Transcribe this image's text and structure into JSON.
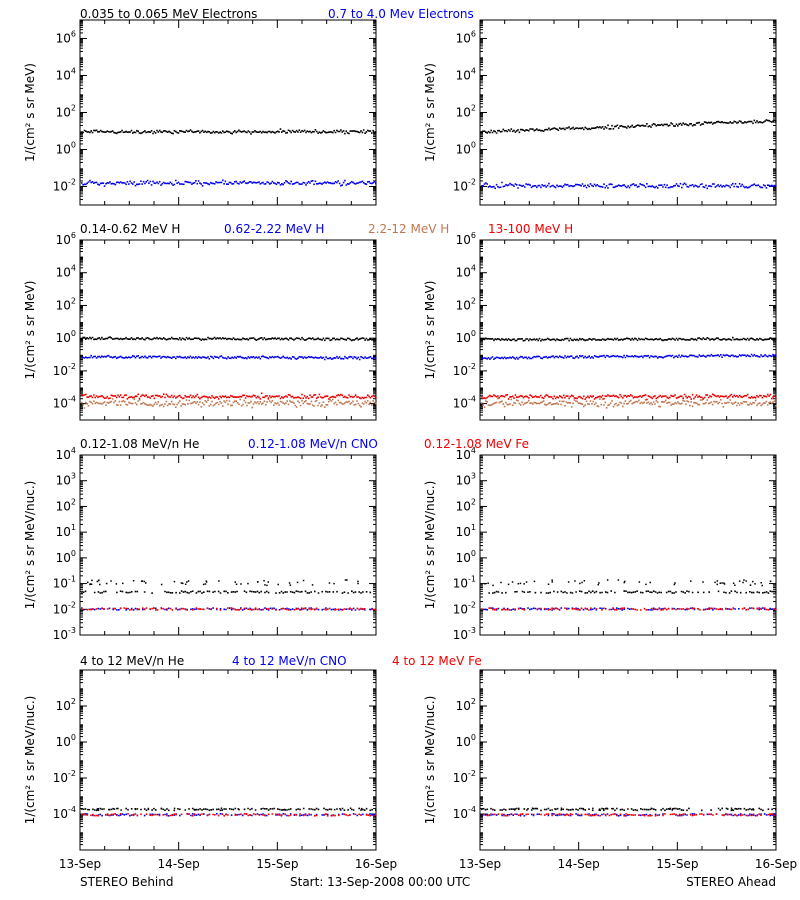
{
  "colors": {
    "black": "#000000",
    "blue": "#0000ee",
    "tan": "#c07850",
    "red": "#ee0000"
  },
  "rows": [
    {
      "legend": [
        {
          "text": "0.035 to 0.065 MeV Electrons",
          "color": "#000000"
        },
        {
          "text": "0.7 to 4.0 Mev Electrons",
          "color": "#0000ee"
        }
      ],
      "ylabel": "1/(cm² s sr MeV)"
    },
    {
      "legend": [
        {
          "text": "0.14-0.62 MeV H",
          "color": "#000000"
        },
        {
          "text": "0.62-2.22 MeV H",
          "color": "#0000ee"
        },
        {
          "text": "2.2-12 MeV H",
          "color": "#c07850"
        },
        {
          "text": "13-100 MeV H",
          "color": "#ee0000"
        }
      ],
      "ylabel": "1/(cm² s sr MeV)"
    },
    {
      "legend": [
        {
          "text": "0.12-1.08 MeV/n He",
          "color": "#000000"
        },
        {
          "text": "0.12-1.08 MeV/n CNO",
          "color": "#0000ee"
        },
        {
          "text": "0.12-1.08 MeV Fe",
          "color": "#ee0000"
        }
      ],
      "ylabel": "1/(cm² s sr MeV/nuc.)"
    },
    {
      "legend": [
        {
          "text": "4 to 12 MeV/n He",
          "color": "#000000"
        },
        {
          "text": "4 to 12 MeV/n CNO",
          "color": "#0000ee"
        },
        {
          "text": "4 to 12 MeV Fe",
          "color": "#ee0000"
        }
      ],
      "ylabel": "1/(cm² s sr MeV/nuc.)"
    }
  ],
  "footer": {
    "left": "STEREO Behind",
    "center": "Start: 13-Sep-2008 00:00 UTC",
    "right": "STEREO Ahead"
  },
  "chart_data": [
    {
      "type": "scatter",
      "row": 0,
      "spacecraft": "STEREO Behind",
      "x_ticks": [
        "13-Sep",
        "14-Sep",
        "15-Sep",
        "16-Sep"
      ],
      "xlim": [
        "2008-09-13T00:00",
        "2008-09-16T00:00"
      ],
      "yscale": "log",
      "ylim": [
        0.001,
        10000000
      ],
      "y_ticks": [
        {
          "exp": -2,
          "v": 0.01
        },
        {
          "exp": 0,
          "v": 1
        },
        {
          "exp": 2,
          "v": 100
        },
        {
          "exp": 4,
          "v": 10000
        },
        {
          "exp": 6,
          "v": 1000000
        }
      ],
      "series": [
        {
          "name": "0.035 to 0.065 MeV Electrons",
          "color": "#000000",
          "start": 10,
          "end": 10,
          "scatter": 0.1
        },
        {
          "name": "0.7 to 4.0 Mev Electrons",
          "color": "#0000ee",
          "start": 0.017,
          "end": 0.017,
          "scatter": 0.15
        }
      ]
    },
    {
      "type": "scatter",
      "row": 0,
      "spacecraft": "STEREO Ahead",
      "x_ticks": [
        "13-Sep",
        "14-Sep",
        "15-Sep",
        "16-Sep"
      ],
      "xlim": [
        "2008-09-13T00:00",
        "2008-09-16T00:00"
      ],
      "yscale": "log",
      "ylim": [
        0.001,
        10000000
      ],
      "y_ticks": [
        {
          "exp": -2,
          "v": 0.01
        },
        {
          "exp": 0,
          "v": 1
        },
        {
          "exp": 2,
          "v": 100
        },
        {
          "exp": 4,
          "v": 10000
        },
        {
          "exp": 6,
          "v": 1000000
        }
      ],
      "series": [
        {
          "name": "0.035 to 0.065 MeV Electrons",
          "color": "#000000",
          "start": 10,
          "end": 38,
          "scatter": 0.1
        },
        {
          "name": "0.7 to 4.0 Mev Electrons",
          "color": "#0000ee",
          "start": 0.012,
          "end": 0.012,
          "scatter": 0.15
        }
      ]
    },
    {
      "type": "scatter",
      "row": 1,
      "spacecraft": "STEREO Behind",
      "x_ticks": [
        "13-Sep",
        "14-Sep",
        "15-Sep",
        "16-Sep"
      ],
      "xlim": [
        "2008-09-13T00:00",
        "2008-09-16T00:00"
      ],
      "yscale": "log",
      "ylim": [
        1e-05,
        1000000
      ],
      "y_ticks": [
        {
          "exp": -4,
          "v": 0.0001
        },
        {
          "exp": -2,
          "v": 0.01
        },
        {
          "exp": 0,
          "v": 1
        },
        {
          "exp": 2,
          "v": 100
        },
        {
          "exp": 4,
          "v": 10000
        },
        {
          "exp": 6,
          "v": 1000000
        }
      ],
      "series": [
        {
          "name": "0.14-0.62 MeV H",
          "color": "#000000",
          "start": 1.1,
          "end": 0.95,
          "scatter": 0.05
        },
        {
          "name": "0.62-2.22 MeV H",
          "color": "#0000ee",
          "start": 0.08,
          "end": 0.07,
          "scatter": 0.06
        },
        {
          "name": "2.2-12 MeV H",
          "color": "#c07850",
          "start": 0.00012,
          "end": 0.00012,
          "scatter": 0.3
        },
        {
          "name": "13-100 MeV H",
          "color": "#ee0000",
          "start": 0.0003,
          "end": 0.0003,
          "scatter": 0.18
        }
      ]
    },
    {
      "type": "scatter",
      "row": 1,
      "spacecraft": "STEREO Ahead",
      "x_ticks": [
        "13-Sep",
        "14-Sep",
        "15-Sep",
        "16-Sep"
      ],
      "xlim": [
        "2008-09-13T00:00",
        "2008-09-16T00:00"
      ],
      "yscale": "log",
      "ylim": [
        1e-05,
        1000000
      ],
      "y_ticks": [
        {
          "exp": -4,
          "v": 0.0001
        },
        {
          "exp": -2,
          "v": 0.01
        },
        {
          "exp": 0,
          "v": 1
        },
        {
          "exp": 2,
          "v": 100
        },
        {
          "exp": 4,
          "v": 10000
        },
        {
          "exp": 6,
          "v": 1000000
        }
      ],
      "series": [
        {
          "name": "0.14-0.62 MeV H",
          "color": "#000000",
          "start": 0.9,
          "end": 1.0,
          "scatter": 0.05
        },
        {
          "name": "0.62-2.22 MeV H",
          "color": "#0000ee",
          "start": 0.07,
          "end": 0.1,
          "scatter": 0.06
        },
        {
          "name": "2.2-12 MeV H",
          "color": "#c07850",
          "start": 0.00012,
          "end": 0.00012,
          "scatter": 0.3
        },
        {
          "name": "13-100 MeV H",
          "color": "#ee0000",
          "start": 0.0003,
          "end": 0.0003,
          "scatter": 0.18
        }
      ]
    },
    {
      "type": "scatter",
      "row": 2,
      "spacecraft": "STEREO Behind",
      "x_ticks": [
        "13-Sep",
        "14-Sep",
        "15-Sep",
        "16-Sep"
      ],
      "xlim": [
        "2008-09-13T00:00",
        "2008-09-16T00:00"
      ],
      "yscale": "log",
      "ylim": [
        0.001,
        10000
      ],
      "y_ticks": [
        {
          "exp": -3,
          "v": 0.001
        },
        {
          "exp": -2,
          "v": 0.01
        },
        {
          "exp": -1,
          "v": 0.1
        },
        {
          "exp": 0,
          "v": 1
        },
        {
          "exp": 1,
          "v": 10
        },
        {
          "exp": 2,
          "v": 100
        },
        {
          "exp": 3,
          "v": 1000
        },
        {
          "exp": 4,
          "v": 10000
        }
      ],
      "series": [
        {
          "name": "0.12-1.08 MeV/n He",
          "color": "#000000",
          "start": 0.05,
          "end": 0.05,
          "scatter": 0.0,
          "sparse": [
            0.1,
            0.13
          ]
        },
        {
          "name": "0.12-1.08 MeV/n CNO",
          "color": "#0000ee",
          "start": 0.011,
          "end": 0.011,
          "scatter": 0.0
        },
        {
          "name": "0.12-1.08 MeV Fe",
          "color": "#ee0000",
          "start": 0.011,
          "end": 0.011,
          "scatter": 0.0
        }
      ]
    },
    {
      "type": "scatter",
      "row": 2,
      "spacecraft": "STEREO Ahead",
      "x_ticks": [
        "13-Sep",
        "14-Sep",
        "15-Sep",
        "16-Sep"
      ],
      "xlim": [
        "2008-09-13T00:00",
        "2008-09-16T00:00"
      ],
      "yscale": "log",
      "ylim": [
        0.001,
        10000
      ],
      "y_ticks": [
        {
          "exp": -3,
          "v": 0.001
        },
        {
          "exp": -2,
          "v": 0.01
        },
        {
          "exp": -1,
          "v": 0.1
        },
        {
          "exp": 0,
          "v": 1
        },
        {
          "exp": 1,
          "v": 10
        },
        {
          "exp": 2,
          "v": 100
        },
        {
          "exp": 3,
          "v": 1000
        },
        {
          "exp": 4,
          "v": 10000
        }
      ],
      "series": [
        {
          "name": "0.12-1.08 MeV/n He",
          "color": "#000000",
          "start": 0.05,
          "end": 0.05,
          "scatter": 0.0,
          "sparse": [
            0.1,
            0.13
          ]
        },
        {
          "name": "0.12-1.08 MeV/n CNO",
          "color": "#0000ee",
          "start": 0.011,
          "end": 0.011,
          "scatter": 0.0
        },
        {
          "name": "0.12-1.08 MeV Fe",
          "color": "#ee0000",
          "start": 0.011,
          "end": 0.011,
          "scatter": 0.0
        }
      ]
    },
    {
      "type": "scatter",
      "row": 3,
      "spacecraft": "STEREO Behind",
      "x_ticks": [
        "13-Sep",
        "14-Sep",
        "15-Sep",
        "16-Sep"
      ],
      "xlim": [
        "2008-09-13T00:00",
        "2008-09-16T00:00"
      ],
      "yscale": "log",
      "ylim": [
        1e-06,
        10000
      ],
      "y_ticks": [
        {
          "exp": -4,
          "v": 0.0001
        },
        {
          "exp": -2,
          "v": 0.01
        },
        {
          "exp": 0,
          "v": 1
        },
        {
          "exp": 2,
          "v": 100
        }
      ],
      "series": [
        {
          "name": "4 to 12 MeV/n He",
          "color": "#000000",
          "start": 0.0002,
          "end": 0.0002,
          "scatter": 0.0,
          "sparse": [
            0.0002
          ]
        },
        {
          "name": "4 to 12 MeV/n CNO",
          "color": "#0000ee",
          "start": 0.0001,
          "end": 0.0001,
          "scatter": 0.0
        },
        {
          "name": "4 to 12 MeV Fe",
          "color": "#ee0000",
          "start": 0.0001,
          "end": 0.0001,
          "scatter": 0.0
        }
      ]
    },
    {
      "type": "scatter",
      "row": 3,
      "spacecraft": "STEREO Ahead",
      "x_ticks": [
        "13-Sep",
        "14-Sep",
        "15-Sep",
        "16-Sep"
      ],
      "xlim": [
        "2008-09-13T00:00",
        "2008-09-16T00:00"
      ],
      "yscale": "log",
      "ylim": [
        1e-06,
        10000
      ],
      "y_ticks": [
        {
          "exp": -4,
          "v": 0.0001
        },
        {
          "exp": -2,
          "v": 0.01
        },
        {
          "exp": 0,
          "v": 1
        },
        {
          "exp": 2,
          "v": 100
        }
      ],
      "series": [
        {
          "name": "4 to 12 MeV/n He",
          "color": "#000000",
          "start": 0.0002,
          "end": 0.0002,
          "scatter": 0.0,
          "sparse": [
            0.0002
          ]
        },
        {
          "name": "4 to 12 MeV/n CNO",
          "color": "#0000ee",
          "start": 0.0001,
          "end": 0.0001,
          "scatter": 0.0
        },
        {
          "name": "4 to 12 MeV Fe",
          "color": "#ee0000",
          "start": 0.0001,
          "end": 0.0001,
          "scatter": 0.0
        }
      ]
    }
  ]
}
